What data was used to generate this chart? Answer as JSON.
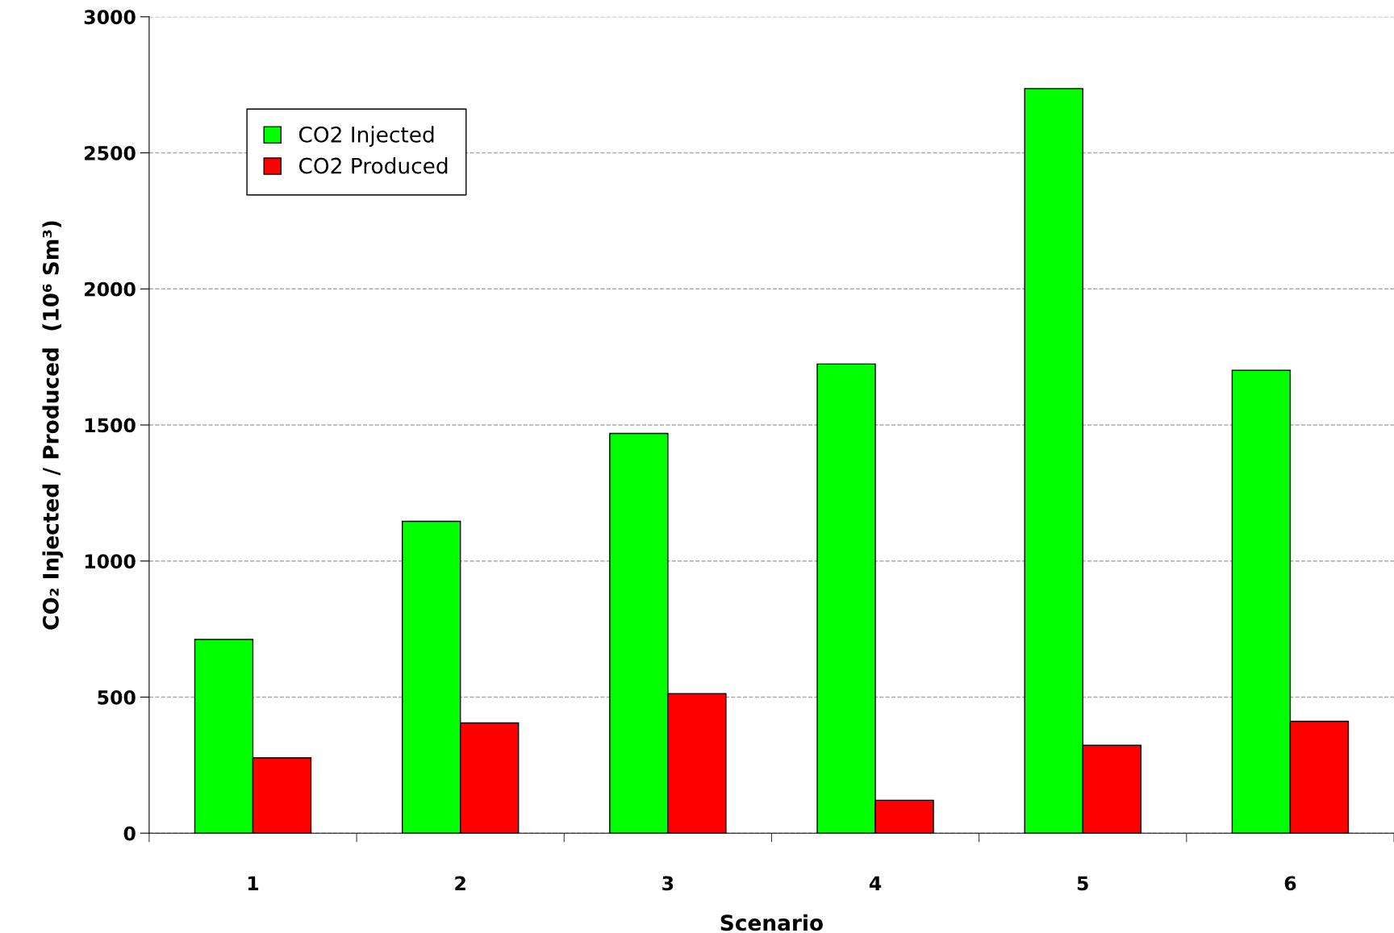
{
  "chart_data": {
    "type": "bar",
    "xlabel": "Scenario",
    "ylabel": "CO₂ Injected / Produced  (10⁶ Sm³)",
    "categories": [
      "1",
      "2",
      "3",
      "4",
      "5",
      "6"
    ],
    "series": [
      {
        "name": "CO2 Injected",
        "color": "#00ff00",
        "values": [
          712,
          1146,
          1469,
          1724,
          2736,
          1701
        ]
      },
      {
        "name": "CO2 Produced",
        "color": "#ff0000",
        "values": [
          277,
          405,
          513,
          121,
          323,
          411
        ]
      }
    ],
    "ylim": [
      0,
      3000
    ],
    "yticks": [
      0,
      500,
      1000,
      1500,
      2000,
      2500,
      3000
    ],
    "grid": "y",
    "legend": "top left"
  }
}
